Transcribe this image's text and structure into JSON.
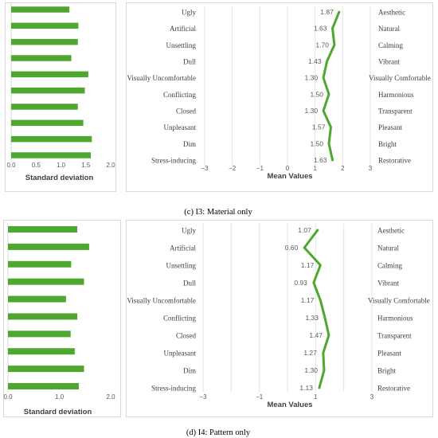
{
  "chart_data": [
    {
      "id": "c-sd",
      "type": "bar",
      "orientation": "horizontal",
      "values": [
        1.17,
        1.35,
        1.34,
        1.21,
        1.55,
        1.48,
        1.34,
        1.45,
        1.62,
        1.6
      ],
      "xlim": [
        0,
        2
      ],
      "xticks": [
        "0.0",
        "0.5",
        "1.0",
        "1.5",
        "2.0"
      ],
      "xlabel": "Standard deviation",
      "color": "#4ea72e"
    },
    {
      "id": "c-mean",
      "type": "line",
      "left_labels": [
        "Ugly",
        "Artificial",
        "Unsettling",
        "Dull",
        "Visually Uncomfortable",
        "Conflicting",
        "Closed",
        "Unpleasant",
        "Dim",
        "Stress-inducing"
      ],
      "right_labels": [
        "Aesthetic",
        "Natural",
        "Calming",
        "Vibrant",
        "Visually Comfortable",
        "Harmonious",
        "Transparent",
        "Pleasant",
        "Bright",
        "Restorative"
      ],
      "values": [
        1.87,
        1.63,
        1.7,
        1.43,
        1.3,
        1.5,
        1.3,
        1.57,
        1.5,
        1.63
      ],
      "value_labels": [
        "1.87",
        "1.63",
        "1.70",
        "1.43",
        "1.30",
        "1.50",
        "1.30",
        "1.57",
        "1.50",
        "1.63"
      ],
      "xlim": [
        -3,
        3
      ],
      "xticks": [
        "−3",
        "−2",
        "−1",
        "0",
        "1",
        "2",
        "3"
      ],
      "xlabel": "Mean Values",
      "color": "#4ea72e"
    },
    {
      "id": "d-sd",
      "type": "bar",
      "orientation": "horizontal",
      "values": [
        1.35,
        1.58,
        1.23,
        1.48,
        1.13,
        1.35,
        1.22,
        1.3,
        1.48,
        1.38
      ],
      "xlim": [
        0,
        2
      ],
      "xticks": [
        "0.0",
        "1.0",
        "2.0"
      ],
      "xlabel": "Standard deviation",
      "color": "#4ea72e"
    },
    {
      "id": "d-mean",
      "type": "line",
      "left_labels": [
        "Ugly",
        "Artificial",
        "Unsettling",
        "Dull",
        "Visually Uncomfortable",
        "Conflicting",
        "Closed",
        "Unpleasant",
        "Dim",
        "Stress-inducing"
      ],
      "right_labels": [
        "Aesthetic",
        "Natural",
        "Calming",
        "Vibrant",
        "Visually Comfortable",
        "Harmonious",
        "Transparent",
        "Pleasant",
        "Bright",
        "Restorative"
      ],
      "values": [
        1.07,
        0.6,
        1.17,
        0.93,
        1.17,
        1.33,
        1.47,
        1.27,
        1.3,
        1.13
      ],
      "value_labels": [
        "1.07",
        "0.60",
        "1.17",
        "0.93",
        "1.17",
        "1.33",
        "1.47",
        "1.27",
        "1.30",
        "1.13"
      ],
      "xlim": [
        -3,
        3
      ],
      "xticks": [
        "−3",
        "−1",
        "1",
        "3"
      ],
      "xlabel": "Mean Values",
      "color": "#4ea72e"
    }
  ],
  "captions": {
    "c": "(c) I3: Material only",
    "d": "(d) I4: Pattern only"
  }
}
